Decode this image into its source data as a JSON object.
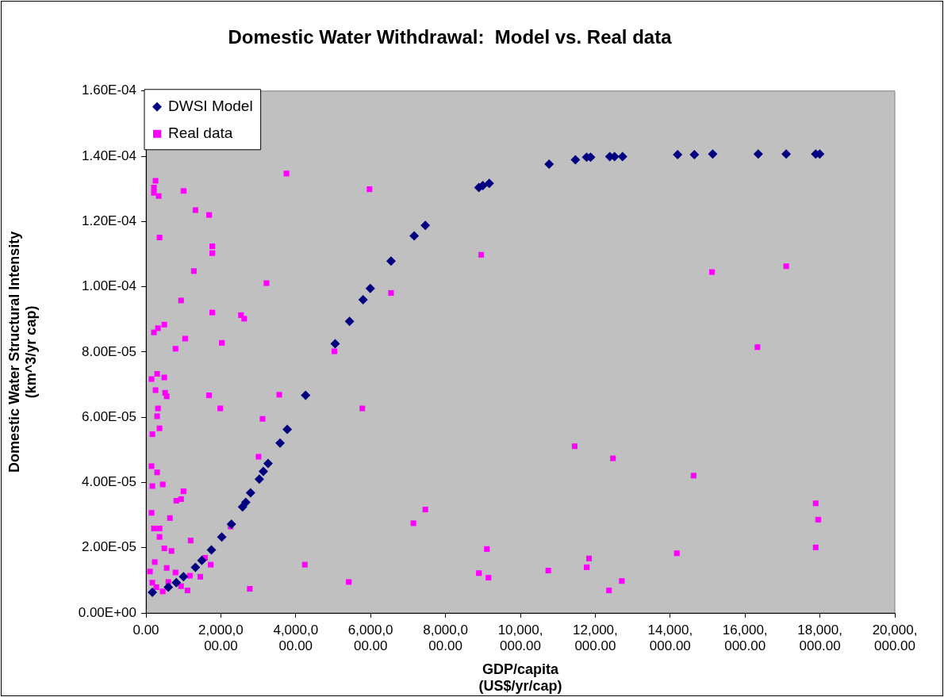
{
  "chart_data": {
    "type": "scatter",
    "title": "Domestic Water Withdrawal:  Model vs. Real data",
    "xlabel": "GDP/capita\n(US$/yr/cap)",
    "ylabel": "Domestic Water Structural Intensity\n(km^3/yr cap)",
    "xlim": [
      0,
      20000000
    ],
    "xticks": [
      {
        "value": 0,
        "label": "0.00"
      },
      {
        "value": 2000000,
        "label": "2,000,000.00"
      },
      {
        "value": 4000000,
        "label": "4,000,000.00"
      },
      {
        "value": 6000000,
        "label": "6,000,000.00"
      },
      {
        "value": 8000000,
        "label": "8,000,000.00"
      },
      {
        "value": 10000000,
        "label": "10,000,000.00"
      },
      {
        "value": 12000000,
        "label": "12,000,000.00"
      },
      {
        "value": 14000000,
        "label": "14,000,000.00"
      },
      {
        "value": 16000000,
        "label": "16,000,000.00"
      },
      {
        "value": 18000000,
        "label": "18,000,000.00"
      },
      {
        "value": 20000000,
        "label": "20,000,000.00"
      }
    ],
    "ylim": [
      0,
      0.00016
    ],
    "yticks": [
      {
        "value": 0,
        "label": "0.00E+00"
      },
      {
        "value": 2e-05,
        "label": "2.00E-05"
      },
      {
        "value": 4e-05,
        "label": "4.00E-05"
      },
      {
        "value": 6e-05,
        "label": "6.00E-05"
      },
      {
        "value": 8e-05,
        "label": "8.00E-05"
      },
      {
        "value": 0.0001,
        "label": "1.00E-04"
      },
      {
        "value": 0.00012,
        "label": "1.20E-04"
      },
      {
        "value": 0.00014,
        "label": "1.40E-04"
      },
      {
        "value": 0.00016,
        "label": "1.60E-04"
      }
    ],
    "grid": false,
    "legend": "top left",
    "series": [
      {
        "name": "DWSI Model",
        "color": "#000080",
        "marker": "diamond",
        "x": [
          171000,
          597000,
          810000,
          1002000,
          1322000,
          1492000,
          1748000,
          2025000,
          2281000,
          2580000,
          2665000,
          2793000,
          3027000,
          3134000,
          3262000,
          3582000,
          3774000,
          4264000,
          5053000,
          5437000,
          5799000,
          5991000,
          6545000,
          7164000,
          7462000,
          8890000,
          8997000,
          9168000,
          10767000,
          11470000,
          11769000,
          11875000,
          12387000,
          12515000,
          12728000,
          14199000,
          14647000,
          15137000,
          16352000,
          17099000,
          17887000,
          17994000
        ],
        "values": [
          6.3e-06,
          7.9e-06,
          9.3e-06,
          1.11e-05,
          1.4e-05,
          1.61e-05,
          1.93e-05,
          2.33e-05,
          2.72e-05,
          3.25e-05,
          3.39e-05,
          3.68e-05,
          4.1e-05,
          4.34e-05,
          4.58e-05,
          5.21e-05,
          5.63e-05,
          6.67e-05,
          8.25e-05,
          8.94e-05,
          9.6e-05,
          9.95e-05,
          0.0001079,
          0.0001156,
          0.0001188,
          0.0001304,
          0.000131,
          0.0001317,
          0.0001376,
          0.0001389,
          0.0001397,
          0.0001397,
          0.0001399,
          0.0001399,
          0.0001399,
          0.0001405,
          0.0001405,
          0.0001407,
          0.0001407,
          0.0001407,
          0.0001407,
          0.0001407
        ]
      },
      {
        "name": "Real data",
        "color": "#ff00ff",
        "marker": "square",
        "x": [
          256000,
          213000,
          213000,
          341000,
          1002000,
          1322000,
          1684000,
          3752000,
          5970000,
          362000,
          1770000,
          1770000,
          1279000,
          3219000,
          938000,
          6545000,
          1770000,
          2537000,
          2622000,
          490000,
          320000,
          213000,
          1045000,
          2025000,
          789000,
          5032000,
          298000,
          149000,
          490000,
          256000,
          512000,
          554000,
          1684000,
          3560000,
          1983000,
          5778000,
          320000,
          298000,
          3113000,
          362000,
          171000,
          3006000,
          149000,
          298000,
          171000,
          448000,
          1002000,
          810000,
          938000,
          149000,
          640000,
          213000,
          362000,
          362000,
          2260000,
          1194000,
          490000,
          682000,
          1578000,
          1727000,
          235000,
          107000,
          554000,
          789000,
          4243000,
          5415000,
          171000,
          597000,
          1173000,
          1450000,
          938000,
          2772000,
          277000,
          448000,
          1109000,
          8954000,
          15116000,
          17099000,
          16331000,
          11449000,
          12472000,
          14626000,
          17887000,
          17951000,
          17887000,
          7142000,
          7462000,
          9104000,
          8890000,
          9146000,
          10745000,
          11769000,
          11833000,
          12366000,
          12707000,
          14178000
        ],
        "values": [
          0.0001325,
          0.0001304,
          0.0001288,
          0.0001278,
          0.0001294,
          0.0001235,
          0.000122,
          0.0001347,
          0.0001299,
          0.0001151,
          0.0001124,
          0.0001103,
          0.0001048,
          0.0001011,
          9.58e-05,
          9.81e-05,
          9.21e-05,
          9.13e-05,
          9.02e-05,
          8.84e-05,
          8.73e-05,
          8.6e-05,
          8.41e-05,
          8.28e-05,
          8.1e-05,
          8.02e-05,
          7.33e-05,
          7.17e-05,
          7.22e-05,
          6.83e-05,
          6.75e-05,
          6.64e-05,
          6.67e-05,
          6.69e-05,
          6.27e-05,
          6.27e-05,
          6.27e-05,
          6.03e-05,
          5.95e-05,
          5.66e-05,
          5.48e-05,
          4.79e-05,
          4.5e-05,
          4.31e-05,
          3.89e-05,
          3.94e-05,
          3.73e-05,
          3.44e-05,
          3.49e-05,
          3.07e-05,
          2.91e-05,
          2.59e-05,
          2.59e-05,
          2.33e-05,
          2.65e-05,
          2.22e-05,
          1.98e-05,
          1.9e-05,
          1.69e-05,
          1.48e-05,
          1.56e-05,
          1.27e-05,
          1.38e-05,
          1.24e-05,
          1.48e-05,
          9.5e-06,
          9.3e-06,
          9.5e-06,
          1.14e-05,
          1.11e-05,
          8.2e-06,
          7.4e-06,
          7.9e-06,
          6.6e-06,
          6.9e-06,
          0.0001098,
          0.0001045,
          0.0001063,
          8.15e-05,
          5.11e-05,
          4.74e-05,
          4.21e-05,
          3.36e-05,
          2.86e-05,
          2.01e-05,
          2.75e-05,
          3.17e-05,
          1.96e-05,
          1.22e-05,
          1.08e-05,
          1.3e-05,
          1.4e-05,
          1.67e-05,
          6.9e-06,
          9.8e-06,
          1.83e-05
        ]
      }
    ]
  }
}
